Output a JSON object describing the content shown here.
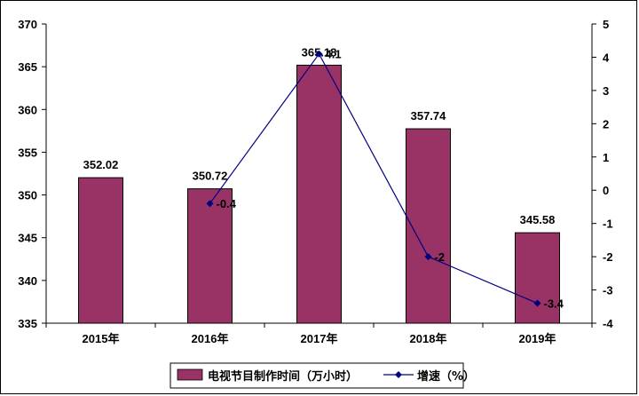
{
  "chart_data": {
    "type": "bar",
    "categories": [
      "2015年",
      "2016年",
      "2017年",
      "2018年",
      "2019年"
    ],
    "series": [
      {
        "name": "电视节目制作时间（万小时）",
        "type": "bar",
        "axis": "left",
        "values": [
          352.02,
          350.72,
          365.18,
          357.74,
          345.58
        ],
        "labels": [
          "352.02",
          "350.72",
          "365.18",
          "357.74",
          "345.58"
        ],
        "color": "#993366"
      },
      {
        "name": "增速（%）",
        "type": "line",
        "axis": "right",
        "values": [
          null,
          -0.4,
          4.1,
          -2,
          -3.4
        ],
        "labels": [
          "",
          "-0.4",
          "4.1",
          "-2",
          "-3.4"
        ],
        "color": "#000080"
      }
    ],
    "y_left": {
      "min": 335,
      "max": 370,
      "step": 5,
      "ticks": [
        "335",
        "340",
        "345",
        "350",
        "355",
        "360",
        "365",
        "370"
      ]
    },
    "y_right": {
      "min": -4,
      "max": 5,
      "step": 1,
      "ticks": [
        "-4",
        "-3",
        "-2",
        "-1",
        "0",
        "1",
        "2",
        "3",
        "4",
        "5"
      ]
    },
    "grid": false,
    "legend": "bottom"
  },
  "legend": {
    "bar_label": "电视节目制作时间（万小时）",
    "line_label": "增速（%）"
  }
}
